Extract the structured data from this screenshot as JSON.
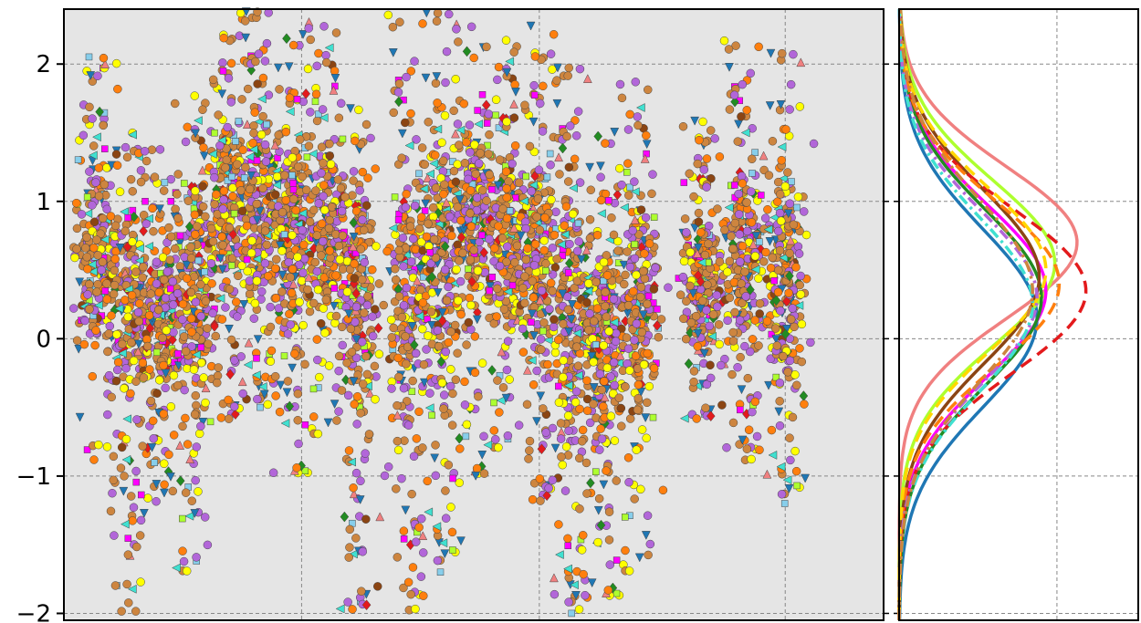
{
  "chart_data": [
    {
      "type": "scatter",
      "title": "",
      "xlabel": "",
      "ylabel": "",
      "ylim": [
        -2.05,
        2.4
      ],
      "grid": true,
      "background": "#e5e5e5",
      "y_ticks": [
        2,
        1,
        0,
        -1,
        -2
      ],
      "y_tick_labels": [
        "2",
        "1",
        "0",
        "−1",
        "−2"
      ],
      "series": [
        {
          "color": "#1f77b4",
          "marker": "triangle-down"
        },
        {
          "color": "#87ceeb",
          "marker": "plus"
        },
        {
          "color": "#40e0d0",
          "marker": "triangle-left"
        },
        {
          "color": "#f08080",
          "marker": "triangle-up"
        },
        {
          "color": "#ff00ff",
          "marker": "star"
        },
        {
          "color": "#228b22",
          "marker": "diamond"
        },
        {
          "color": "#adff2f",
          "marker": "x"
        },
        {
          "color": "#ffff00",
          "marker": "circle"
        },
        {
          "color": "#8b4513",
          "marker": "square"
        },
        {
          "color": "#e31a1c",
          "marker": "diamond"
        },
        {
          "color": "#ff7f0e",
          "marker": "hexagon"
        },
        {
          "color": "#b266d9",
          "marker": "pentagon"
        },
        {
          "color": "#cd853f",
          "marker": "hexagon"
        }
      ],
      "clusters": [
        {
          "x": 0.04,
          "y_range": [
            -0.9,
            2.1
          ],
          "center": 0.6
        },
        {
          "x": 0.08,
          "y_range": [
            -2.0,
            1.5
          ],
          "center": 0.3
        },
        {
          "x": 0.12,
          "y_range": [
            -1.2,
            1.4
          ],
          "center": 0.2
        },
        {
          "x": 0.16,
          "y_range": [
            -1.7,
            1.8
          ],
          "center": 0.3
        },
        {
          "x": 0.2,
          "y_range": [
            -0.6,
            2.4
          ],
          "center": 1.0
        },
        {
          "x": 0.24,
          "y_range": [
            -0.5,
            2.4
          ],
          "center": 0.9
        },
        {
          "x": 0.28,
          "y_range": [
            -1.1,
            2.4
          ],
          "center": 0.8
        },
        {
          "x": 0.32,
          "y_range": [
            -0.7,
            2.3
          ],
          "center": 0.8
        },
        {
          "x": 0.36,
          "y_range": [
            -2.0,
            1.7
          ],
          "center": 0.3
        },
        {
          "x": 0.42,
          "y_range": [
            -2.0,
            2.4
          ],
          "center": 0.3
        },
        {
          "x": 0.46,
          "y_range": [
            -1.7,
            2.4
          ],
          "center": 0.6
        },
        {
          "x": 0.5,
          "y_range": [
            -1.1,
            2.3
          ],
          "center": 0.9
        },
        {
          "x": 0.54,
          "y_range": [
            -0.8,
            2.2
          ],
          "center": 0.7
        },
        {
          "x": 0.58,
          "y_range": [
            -1.2,
            2.3
          ],
          "center": 0.6
        },
        {
          "x": 0.62,
          "y_range": [
            -2.0,
            2.0
          ],
          "center": 0.1
        },
        {
          "x": 0.66,
          "y_range": [
            -2.0,
            1.7
          ],
          "center": 0.0
        },
        {
          "x": 0.7,
          "y_range": [
            -1.7,
            1.9
          ],
          "center": 0.3
        },
        {
          "x": 0.78,
          "y_range": [
            -0.6,
            1.6
          ],
          "center": 0.4
        },
        {
          "x": 0.83,
          "y_range": [
            -0.9,
            2.2
          ],
          "center": 0.6
        },
        {
          "x": 0.88,
          "y_range": [
            -1.2,
            2.1
          ],
          "center": 0.4
        }
      ]
    },
    {
      "type": "line",
      "title": "",
      "xlabel": "",
      "ylabel": "",
      "ylim": [
        -2.05,
        2.4
      ],
      "grid": true,
      "background": "#ffffff",
      "series": [
        {
          "color": "#1f77b4",
          "dash": "solid",
          "mean": 0.15,
          "std": 0.65,
          "peak": 0.62
        },
        {
          "color": "#f08080",
          "dash": "solid",
          "mean": 0.7,
          "std": 0.55,
          "peak": 0.8
        },
        {
          "color": "#adff2f",
          "dash": "solid",
          "mean": 0.55,
          "std": 0.6,
          "peak": 0.7
        },
        {
          "color": "#ff00ff",
          "dash": "solid",
          "mean": 0.35,
          "std": 0.62,
          "peak": 0.66
        },
        {
          "color": "#228b22",
          "dash": "solid",
          "mean": 0.3,
          "std": 0.64,
          "peak": 0.64
        },
        {
          "color": "#8b4513",
          "dash": "solid",
          "mean": 0.45,
          "std": 0.63,
          "peak": 0.63
        },
        {
          "color": "#e31a1c",
          "dash": "dashed",
          "mean": 0.35,
          "std": 0.6,
          "peak": 0.84
        },
        {
          "color": "#ff7f0e",
          "dash": "dashed",
          "mean": 0.4,
          "std": 0.6,
          "peak": 0.72
        },
        {
          "color": "#ffd700",
          "dash": "dashed",
          "mean": 0.5,
          "std": 0.6,
          "peak": 0.66
        },
        {
          "color": "#b266d9",
          "dash": "dashdot",
          "mean": 0.3,
          "std": 0.62,
          "peak": 0.62
        },
        {
          "color": "#40e0d0",
          "dash": "dashdot",
          "mean": 0.25,
          "std": 0.63,
          "peak": 0.6
        },
        {
          "color": "#cd853f",
          "dash": "dashdot",
          "mean": 0.35,
          "std": 0.66,
          "peak": 0.6
        }
      ]
    }
  ]
}
